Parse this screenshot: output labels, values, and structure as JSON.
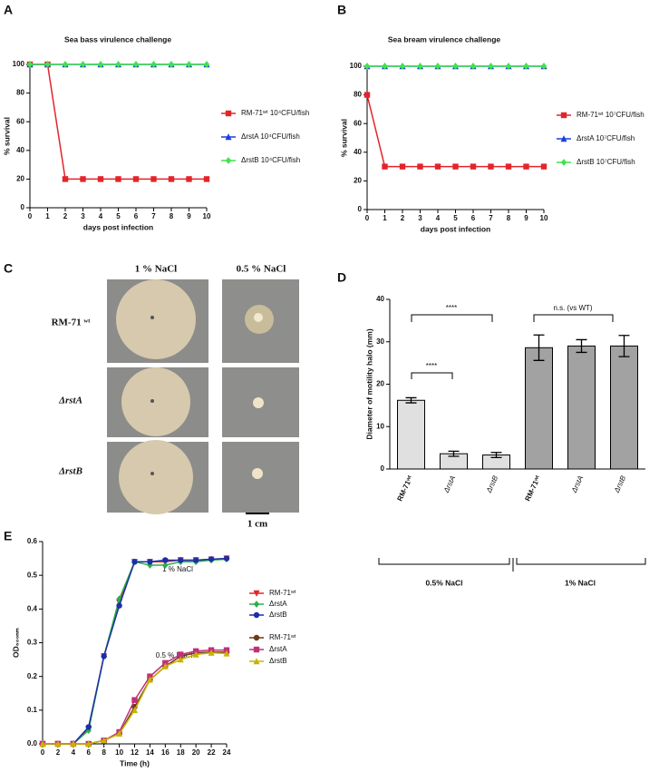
{
  "panel_labels": [
    "A",
    "B",
    "C",
    "D",
    "E"
  ],
  "photo_panel": {
    "columns": [
      "1 % NaCl",
      "0.5 % NaCl"
    ],
    "rows": [
      "RM-71 ʷᵗ",
      "ΔrstA",
      "ΔrstB"
    ],
    "scale_bar": "1 cm"
  },
  "chart_data": [
    {
      "type": "line",
      "title": "Sea bass virulence challenge",
      "x_label": "days post infection",
      "y_label": "% survival",
      "x": [
        0,
        1,
        2,
        3,
        4,
        5,
        6,
        7,
        8,
        9,
        10
      ],
      "xlim": [
        0,
        10
      ],
      "xticks": [
        0,
        1,
        2,
        3,
        4,
        5,
        6,
        7,
        8,
        9,
        10
      ],
      "ylim": [
        0,
        100
      ],
      "yticks": [
        0,
        20,
        40,
        60,
        80,
        100
      ],
      "series": [
        {
          "name": "RM-71ʷᵗ 10⁴CFU/fish",
          "color": "#e3242b",
          "marker": "square",
          "values": [
            100,
            100,
            20,
            20,
            20,
            20,
            20,
            20,
            20,
            20,
            20
          ]
        },
        {
          "name": "ΔrstA 10⁴CFU/fish",
          "color": "#1c3fdb",
          "marker": "triangle",
          "values": [
            100,
            100,
            100,
            100,
            100,
            100,
            100,
            100,
            100,
            100,
            100
          ]
        },
        {
          "name": "ΔrstB 10⁴CFU/fish",
          "color": "#3fe34a",
          "marker": "diamond",
          "values": [
            100,
            100,
            100,
            100,
            100,
            100,
            100,
            100,
            100,
            100,
            100
          ]
        }
      ]
    },
    {
      "type": "line",
      "title": "Sea bream virulence challenge",
      "x_label": "days post infection",
      "y_label": "% survival",
      "x": [
        0,
        1,
        2,
        3,
        4,
        5,
        6,
        7,
        8,
        9,
        10
      ],
      "xlim": [
        0,
        10
      ],
      "xticks": [
        0,
        1,
        2,
        3,
        4,
        5,
        6,
        7,
        8,
        9,
        10
      ],
      "ylim": [
        0,
        100
      ],
      "yticks": [
        0,
        20,
        40,
        60,
        80,
        100
      ],
      "series": [
        {
          "name": "RM-71ʷᵗ 10⁷CFU/fish",
          "color": "#e3242b",
          "marker": "square",
          "values": [
            80,
            30,
            30,
            30,
            30,
            30,
            30,
            30,
            30,
            30,
            30
          ]
        },
        {
          "name": "ΔrstA 10⁷CFU/fish",
          "color": "#1c3fdb",
          "marker": "triangle",
          "values": [
            100,
            100,
            100,
            100,
            100,
            100,
            100,
            100,
            100,
            100,
            100
          ]
        },
        {
          "name": "ΔrstB 10⁷CFU/fish",
          "color": "#3fe34a",
          "marker": "diamond",
          "values": [
            100,
            100,
            100,
            100,
            100,
            100,
            100,
            100,
            100,
            100,
            100
          ]
        }
      ]
    },
    {
      "type": "bar",
      "y_label": "Diameter of motility halo (mm)",
      "categories": [
        "RM-71ʷᵗ",
        "ΔrstA",
        "ΔrstB",
        "RM-71ʷᵗ",
        "ΔrstA",
        "ΔrstB"
      ],
      "values": [
        16.2,
        3.6,
        3.3,
        28.6,
        29,
        29
      ],
      "errors": [
        0.6,
        0.6,
        0.6,
        3,
        1.5,
        2.5
      ],
      "colors": [
        "#e0e0e0",
        "#e0e0e0",
        "#e0e0e0",
        "#a2a2a2",
        "#a2a2a2",
        "#a2a2a2"
      ],
      "ylim": [
        0,
        40
      ],
      "yticks": [
        0,
        10,
        20,
        30,
        40
      ],
      "groups": [
        "0.5% NaCl",
        "1% NaCl"
      ],
      "annotations": [
        "****",
        "****",
        "n.s. (vs WT)"
      ]
    },
    {
      "type": "line",
      "x_label": "Time (h)",
      "y_label": "OD₆₀₀ₙₘ",
      "annotations": [
        "1 % NaCl",
        "0.5 % NaCl"
      ],
      "x": [
        0,
        2,
        4,
        6,
        8,
        10,
        12,
        14,
        16,
        18,
        20,
        22,
        24
      ],
      "xlim": [
        0,
        24
      ],
      "xticks": [
        0,
        2,
        4,
        6,
        8,
        10,
        12,
        14,
        16,
        18,
        20,
        22,
        24
      ],
      "ylim": [
        0,
        0.6
      ],
      "yticks": [
        {
          "value": 0,
          "label": "0.0"
        },
        0.1,
        0.2,
        0.3,
        0.4,
        0.5,
        0.6
      ],
      "series": [
        {
          "name": "RM-71ʷᵗ",
          "color": "#e3242b",
          "marker": "down",
          "values": [
            0,
            0,
            0,
            0.045,
            0.26,
            0.42,
            0.54,
            0.54,
            0.54,
            0.545,
            0.545,
            0.547,
            0.55
          ]
        },
        {
          "name": "ΔrstA",
          "color": "#2ab04a",
          "marker": "diamond",
          "values": [
            0,
            0,
            0,
            0.04,
            0.26,
            0.43,
            0.54,
            0.53,
            0.53,
            0.54,
            0.54,
            0.545,
            0.548
          ]
        },
        {
          "name": "ΔrstB",
          "color": "#1c2fa8",
          "marker": "circle",
          "values": [
            0,
            0,
            0,
            0.05,
            0.26,
            0.41,
            0.54,
            0.54,
            0.545,
            0.545,
            0.545,
            0.548,
            0.55
          ]
        },
        {
          "name": "RM-71ʷᵗ",
          "color": "#6b3a1a",
          "marker": "circle",
          "values": [
            0,
            0,
            0,
            0,
            0.01,
            0.03,
            0.11,
            0.19,
            0.23,
            0.26,
            0.27,
            0.272,
            0.272
          ]
        },
        {
          "name": "ΔrstA",
          "color": "#c0307a",
          "marker": "square",
          "values": [
            0,
            0,
            0,
            0,
            0.01,
            0.035,
            0.13,
            0.2,
            0.24,
            0.265,
            0.275,
            0.278,
            0.278
          ]
        },
        {
          "name": "ΔrstB",
          "color": "#c8b400",
          "marker": "triangle",
          "values": [
            0,
            0,
            0,
            0,
            0.01,
            0.03,
            0.1,
            0.19,
            0.23,
            0.25,
            0.265,
            0.27,
            0.268
          ]
        }
      ]
    }
  ]
}
